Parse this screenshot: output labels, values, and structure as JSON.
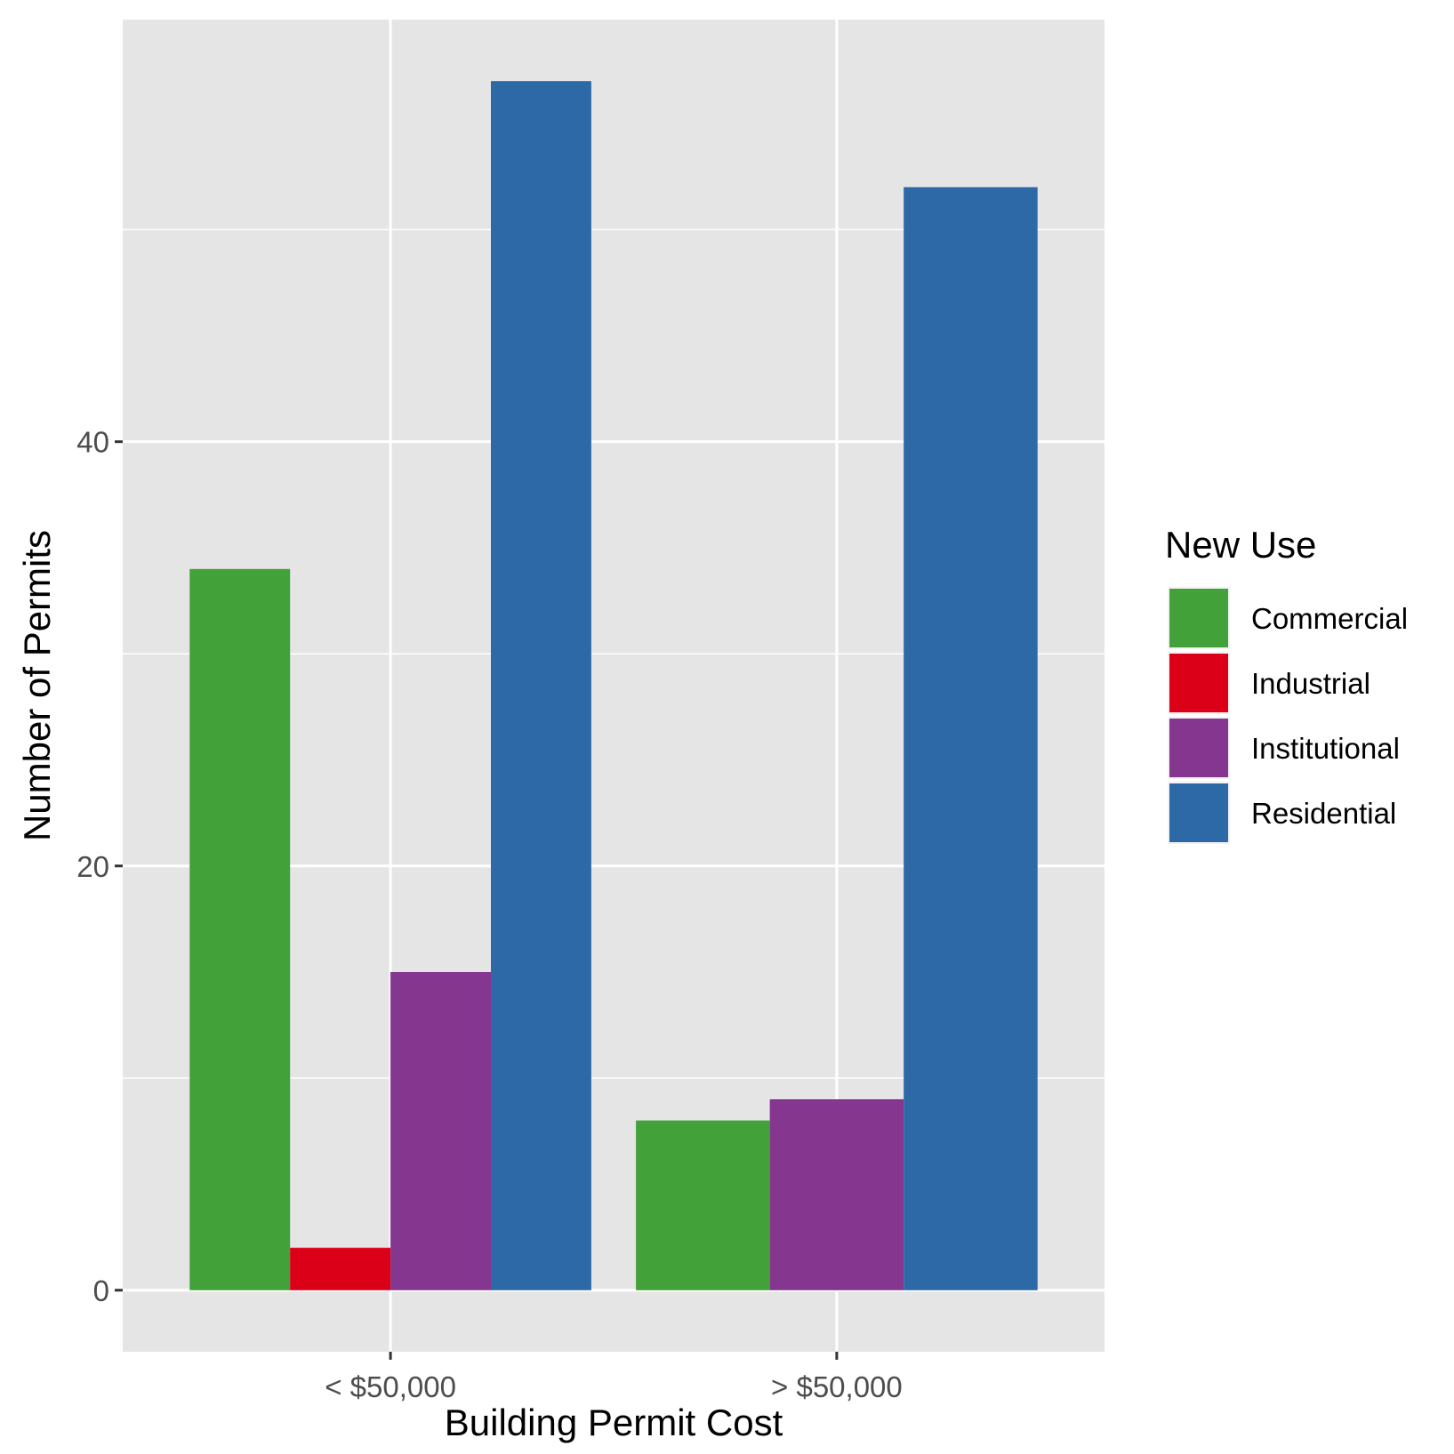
{
  "chart_data": {
    "type": "bar",
    "title": "",
    "xlabel": "Building Permit Cost",
    "ylabel": "Number of Permits",
    "categories": [
      "< $50,000",
      "> $50,000"
    ],
    "series": [
      {
        "name": "Commercial",
        "color": "#43a13a",
        "values": [
          34,
          8
        ]
      },
      {
        "name": "Industrial",
        "color": "#db0018",
        "values": [
          2,
          null
        ]
      },
      {
        "name": "Institutional",
        "color": "#85368f",
        "values": [
          15,
          9
        ]
      },
      {
        "name": "Residential",
        "color": "#2d69a7",
        "values": [
          57,
          52
        ]
      }
    ],
    "ylim": [
      -2.9,
      59.9
    ],
    "yticks": [
      0,
      20,
      40
    ],
    "yticks_minor": [
      10,
      30,
      50
    ],
    "grid": true,
    "panel_background": "#e5e5e5",
    "legend": {
      "title": "New Use",
      "position": "right"
    }
  }
}
